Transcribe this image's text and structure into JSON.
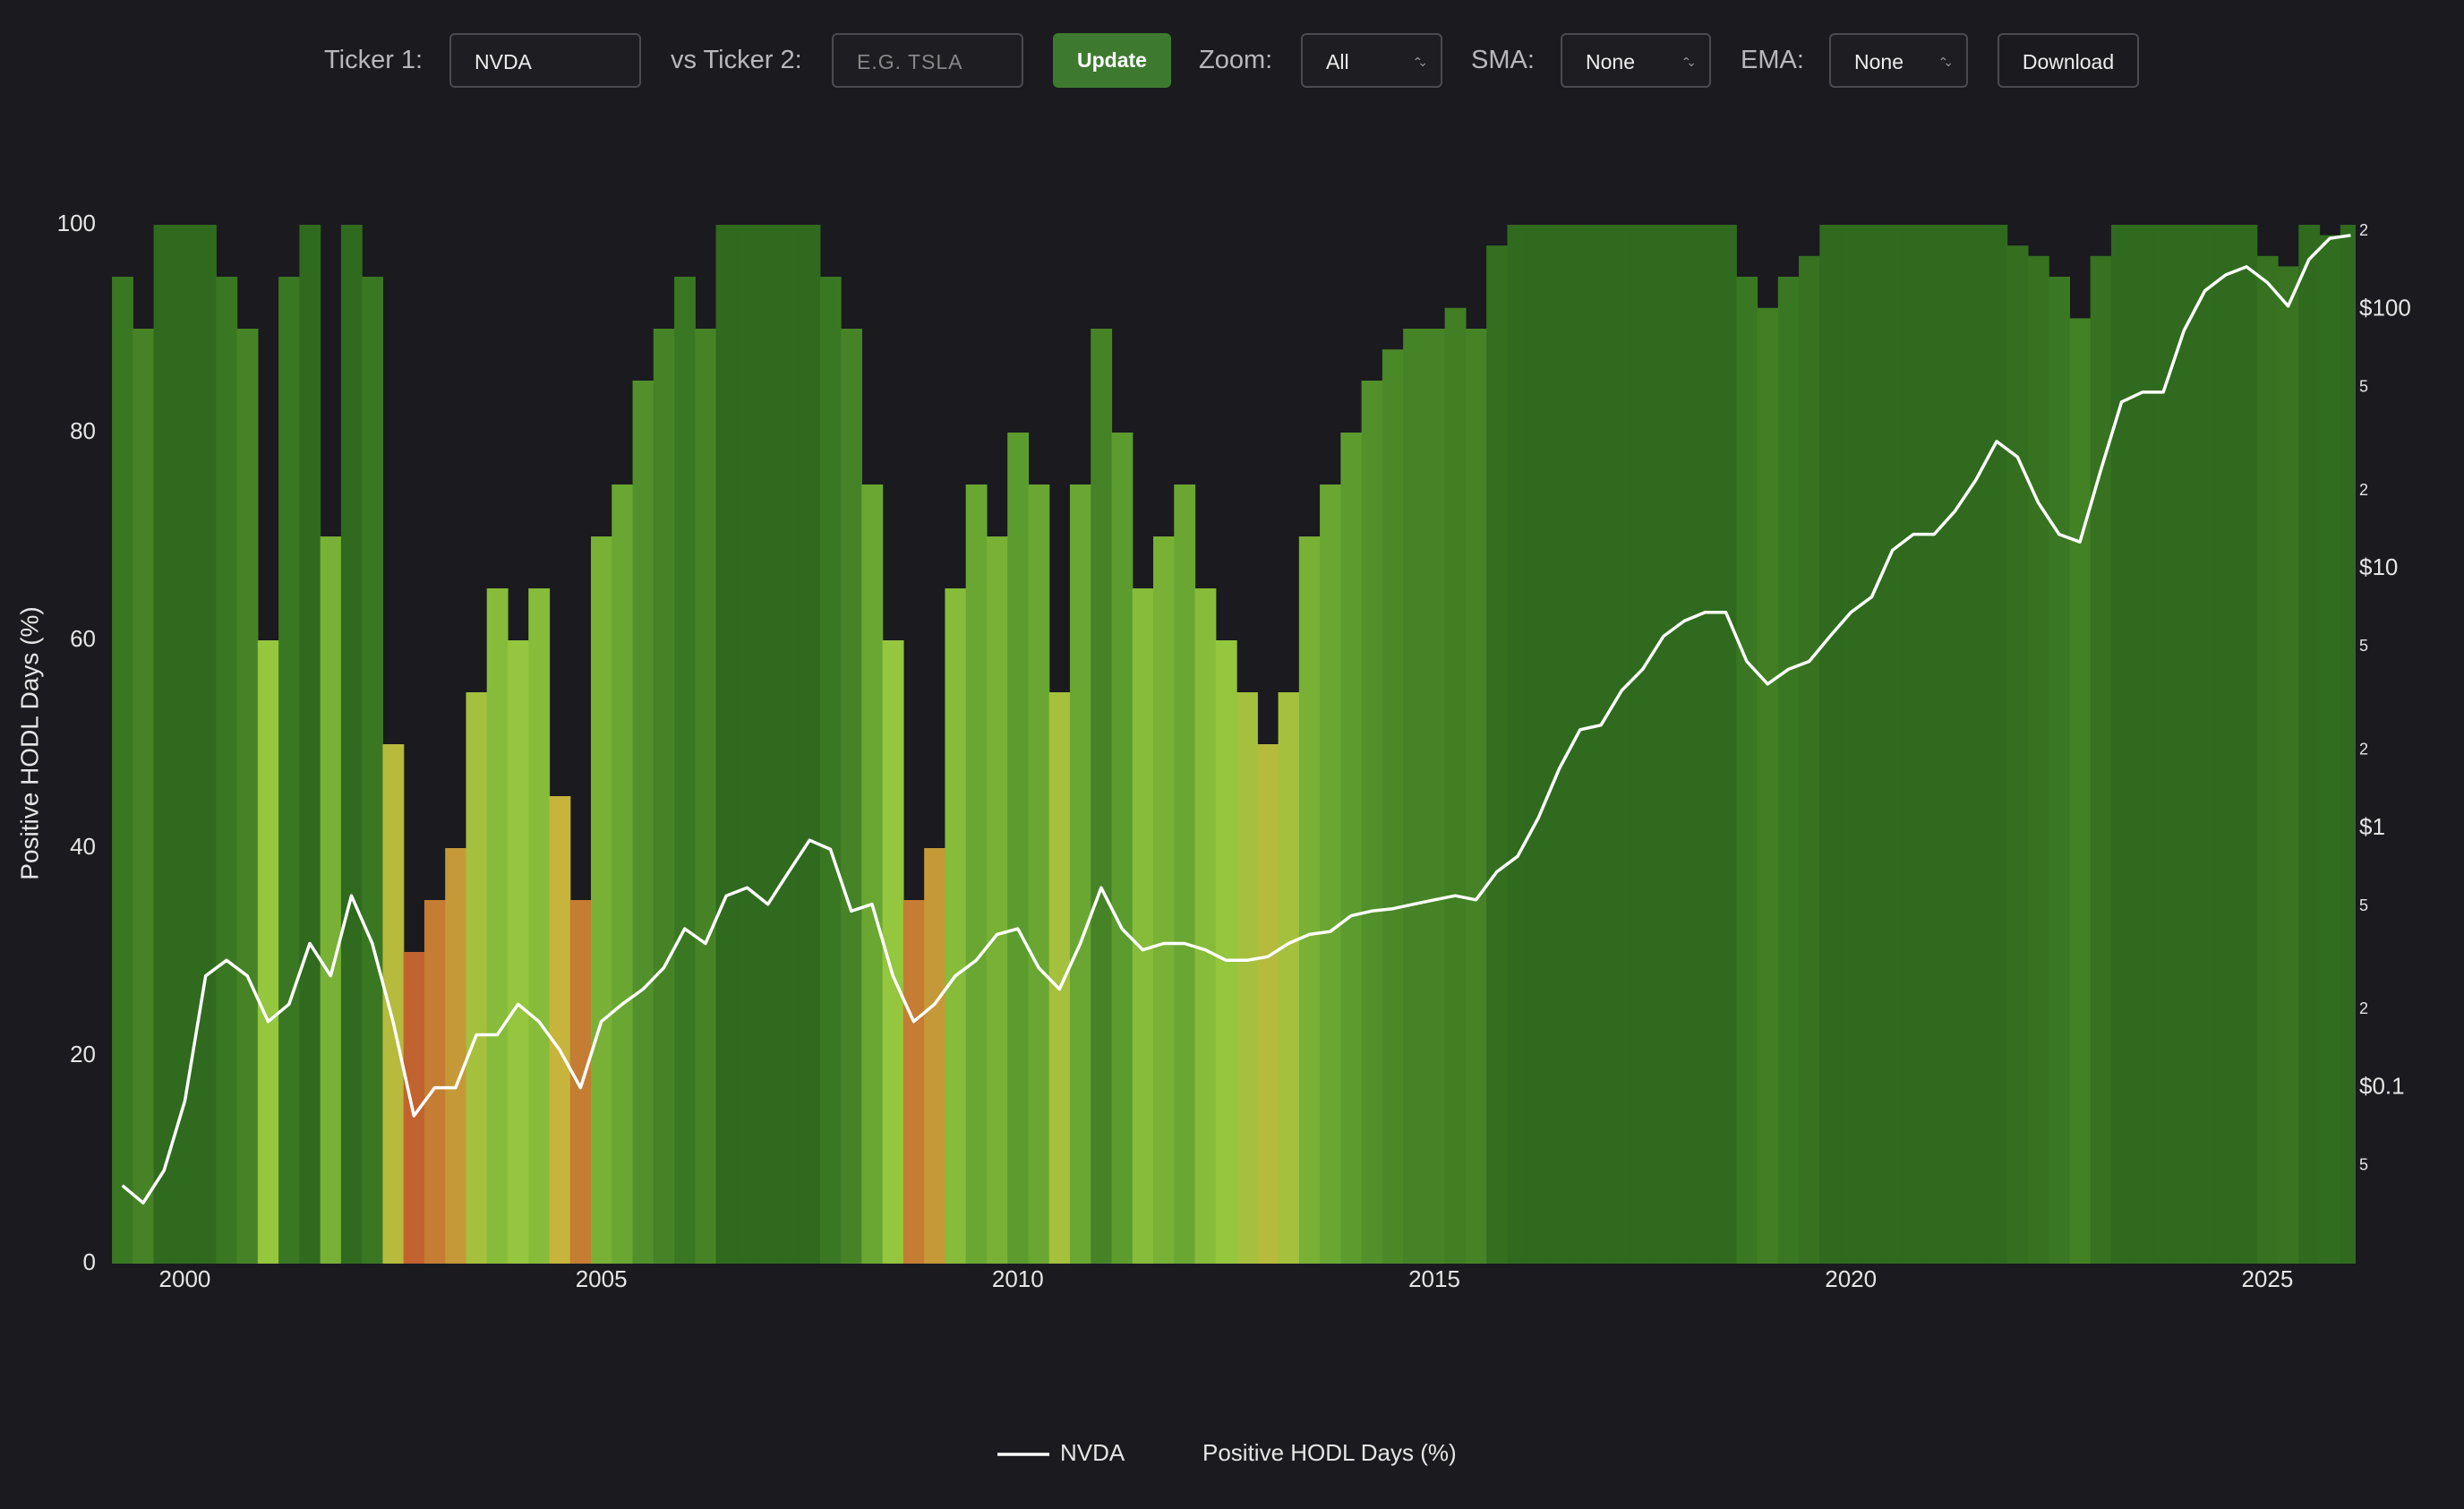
{
  "controls": {
    "ticker1_label": "Ticker 1:",
    "ticker1_value": "NVDA",
    "ticker2_label": "vs Ticker 2:",
    "ticker2_placeholder": "E.G. TSLA",
    "update": "Update",
    "zoom_label": "Zoom:",
    "zoom_value": "All",
    "sma_label": "SMA:",
    "sma_value": "None",
    "ema_label": "EMA:",
    "ema_value": "None",
    "download": "Download"
  },
  "chart_data": {
    "type": "bar",
    "y_label": "Positive HODL Days (%)",
    "x": [
      1999.25,
      1999.5,
      1999.75,
      2000,
      2000.25,
      2000.5,
      2000.75,
      2001,
      2001.25,
      2001.5,
      2001.75,
      2002,
      2002.25,
      2002.5,
      2002.75,
      2003,
      2003.25,
      2003.5,
      2003.75,
      2004,
      2004.25,
      2004.5,
      2004.75,
      2005,
      2005.25,
      2005.5,
      2005.75,
      2006,
      2006.25,
      2006.5,
      2006.75,
      2007,
      2007.25,
      2007.5,
      2007.75,
      2008,
      2008.25,
      2008.5,
      2008.75,
      2009,
      2009.25,
      2009.5,
      2009.75,
      2010,
      2010.25,
      2010.5,
      2010.75,
      2011,
      2011.25,
      2011.5,
      2011.75,
      2012,
      2012.25,
      2012.5,
      2012.75,
      2013,
      2013.25,
      2013.5,
      2013.75,
      2014,
      2014.25,
      2014.5,
      2014.75,
      2015,
      2015.25,
      2015.5,
      2015.75,
      2016,
      2016.25,
      2016.5,
      2016.75,
      2017,
      2017.25,
      2017.5,
      2017.75,
      2018,
      2018.25,
      2018.5,
      2018.75,
      2019,
      2019.25,
      2019.5,
      2019.75,
      2020,
      2020.25,
      2020.5,
      2020.75,
      2021,
      2021.25,
      2021.5,
      2021.75,
      2022,
      2022.25,
      2022.5,
      2022.75,
      2023,
      2023.25,
      2023.5,
      2023.75,
      2024,
      2024.25,
      2024.5,
      2024.75,
      2025,
      2025.25,
      2025.5,
      2025.75,
      2026
    ],
    "series": [
      {
        "name": "Positive HODL Days (%)",
        "type": "bar",
        "colorscale": [
          [
            0,
            "#7a1a12"
          ],
          [
            25,
            "#c0462a"
          ],
          [
            45,
            "#c7b43c"
          ],
          [
            60,
            "#94c63e"
          ],
          [
            80,
            "#5c9c2e"
          ],
          [
            100,
            "#2f6a1e"
          ]
        ],
        "values": [
          95,
          90,
          100,
          100,
          100,
          95,
          90,
          60,
          95,
          100,
          70,
          100,
          95,
          50,
          30,
          35,
          40,
          55,
          65,
          60,
          65,
          45,
          35,
          70,
          75,
          85,
          90,
          95,
          90,
          100,
          100,
          100,
          100,
          100,
          95,
          90,
          75,
          60,
          35,
          40,
          65,
          75,
          70,
          80,
          75,
          55,
          75,
          90,
          80,
          65,
          70,
          75,
          65,
          60,
          55,
          50,
          55,
          70,
          75,
          80,
          85,
          88,
          90,
          90,
          92,
          90,
          98,
          100,
          100,
          100,
          100,
          100,
          100,
          100,
          100,
          100,
          100,
          100,
          95,
          92,
          95,
          97,
          100,
          100,
          100,
          100,
          100,
          100,
          100,
          100,
          100,
          98,
          97,
          95,
          91,
          97,
          100,
          100,
          100,
          100,
          100,
          100,
          100,
          97,
          96,
          100,
          99,
          100
        ]
      },
      {
        "name": "NVDA",
        "type": "line",
        "axis": "y2",
        "color": "#ffffff",
        "values": [
          0.042,
          0.036,
          0.048,
          0.089,
          0.27,
          0.31,
          0.27,
          0.18,
          0.21,
          0.36,
          0.27,
          0.55,
          0.36,
          0.18,
          0.078,
          0.1,
          0.1,
          0.16,
          0.16,
          0.21,
          0.18,
          0.14,
          0.1,
          0.18,
          0.21,
          0.24,
          0.29,
          0.41,
          0.36,
          0.55,
          0.59,
          0.51,
          0.68,
          0.9,
          0.83,
          0.48,
          0.51,
          0.27,
          0.18,
          0.21,
          0.27,
          0.31,
          0.39,
          0.41,
          0.29,
          0.24,
          0.36,
          0.59,
          0.41,
          0.34,
          0.36,
          0.36,
          0.34,
          0.31,
          0.31,
          0.32,
          0.36,
          0.39,
          0.4,
          0.46,
          0.48,
          0.49,
          0.51,
          0.53,
          0.55,
          0.53,
          0.68,
          0.78,
          1.1,
          1.7,
          2.4,
          2.5,
          3.4,
          4.1,
          5.5,
          6.3,
          6.8,
          6.8,
          4.4,
          3.6,
          4.1,
          4.4,
          5.5,
          6.8,
          7.8,
          11.8,
          13.6,
          13.6,
          16.7,
          22,
          31,
          27,
          18,
          13.6,
          12.7,
          24,
          44,
          48,
          48,
          83,
          118,
          136,
          146,
          127,
          103,
          156,
          188,
          193
        ]
      }
    ],
    "xlim": [
      1999.06,
      2026.06
    ],
    "xticks": [
      2000,
      2005,
      2010,
      2015,
      2020,
      2025
    ],
    "ylim": [
      0,
      100
    ],
    "yticks": [
      0,
      20,
      40,
      60,
      80,
      100
    ],
    "y2log": true,
    "y2lim": [
      0.021,
      212
    ],
    "y2ticks": [
      {
        "value": 0.05,
        "label": "5"
      },
      {
        "value": 0.1,
        "label": "$0.1"
      },
      {
        "value": 0.2,
        "label": "2"
      },
      {
        "value": 0.5,
        "label": "5"
      },
      {
        "value": 1,
        "label": "$1"
      },
      2,
      5,
      {
        "value": 10,
        "label": "$10"
      },
      {
        "value": 20,
        "label": "2"
      },
      {
        "value": 50,
        "label": "5"
      },
      {
        "value": 100,
        "label": "$100"
      },
      {
        "value": 200,
        "label": "2"
      }
    ],
    "legend": "bottom"
  }
}
